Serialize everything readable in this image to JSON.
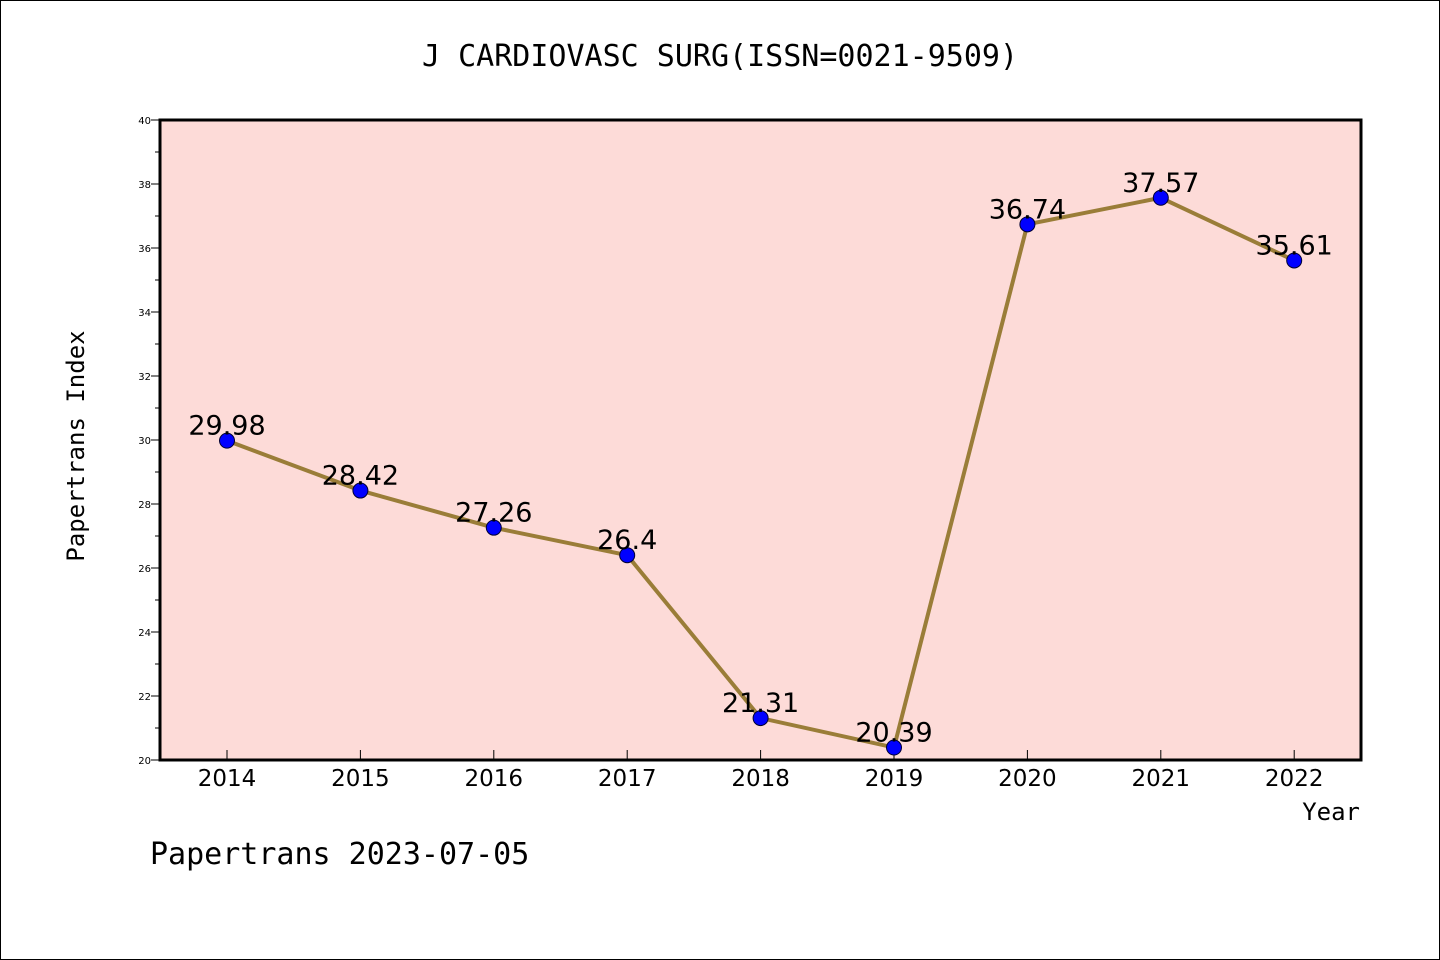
{
  "colors": {
    "plot_background": "#fddbd8",
    "line": "#9a7d38",
    "marker": "#0000ff",
    "axis": "#000000"
  },
  "footer": {
    "text": "Papertrans 2023-07-05"
  },
  "chart_data": {
    "type": "line",
    "title": "J CARDIOVASC SURG(ISSN=0021-9509)",
    "xlabel": "Year",
    "ylabel": "Papertrans Index",
    "categories": [
      "2014",
      "2015",
      "2016",
      "2017",
      "2018",
      "2019",
      "2020",
      "2021",
      "2022"
    ],
    "series": [
      {
        "values": [
          29.98,
          28.42,
          27.26,
          26.4,
          21.31,
          20.39,
          36.74,
          37.57,
          35.61
        ],
        "data_labels": [
          "29.98",
          "28.42",
          "27.26",
          "26.4",
          "21.31",
          "20.39",
          "36.74",
          "37.57",
          "35.61"
        ]
      }
    ],
    "ylim": [
      20,
      40
    ],
    "yticks": [
      20,
      22,
      24,
      26,
      28,
      30,
      32,
      34,
      36,
      38,
      40
    ],
    "ytick_labels": [
      "20",
      "22",
      "24",
      "26",
      "28",
      "30",
      "32",
      "34",
      "36",
      "38",
      "40"
    ],
    "grid": false,
    "legend": "none"
  }
}
